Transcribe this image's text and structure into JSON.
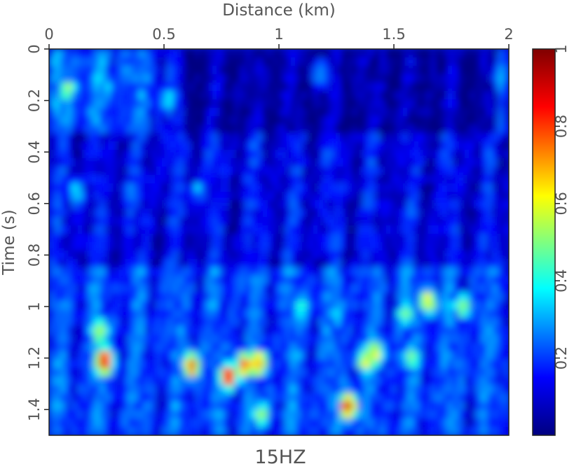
{
  "chart_data": {
    "type": "heatmap",
    "title": "",
    "caption": "15HZ",
    "xlabel": "Distance (km)",
    "ylabel": "Time (s)",
    "xlim": [
      0,
      2
    ],
    "ylim": [
      0,
      1.5
    ],
    "x_axis_position": "top",
    "y_axis_inverted": true,
    "xticks": [
      "0",
      "0.5",
      "1",
      "1.5",
      "2"
    ],
    "yticks": [
      "0",
      "0.2",
      "0.4",
      "0.6",
      "0.8",
      "1",
      "1.2",
      "1.4"
    ],
    "colorbar": {
      "range": [
        0,
        1
      ],
      "ticks": [
        "0.2",
        "0.4",
        "0.6",
        "0.8",
        "1"
      ],
      "colormap": "jet",
      "colors": [
        "#000080",
        "#0000ff",
        "#00ffff",
        "#ffff00",
        "#ff0000",
        "#800000"
      ]
    },
    "features": [
      {
        "x": 0.08,
        "t": 0.16,
        "value": 0.55
      },
      {
        "x": 0.04,
        "t": 0.22,
        "value": 0.35
      },
      {
        "x": 0.25,
        "t": 0.15,
        "value": 0.33
      },
      {
        "x": 0.52,
        "t": 0.2,
        "value": 0.38
      },
      {
        "x": 1.18,
        "t": 0.1,
        "value": 0.35
      },
      {
        "x": 1.97,
        "t": 0.1,
        "value": 0.33
      },
      {
        "x": 0.12,
        "t": 0.56,
        "value": 0.38
      },
      {
        "x": 0.35,
        "t": 0.55,
        "value": 0.28
      },
      {
        "x": 0.65,
        "t": 0.55,
        "value": 0.32
      },
      {
        "x": 0.24,
        "t": 1.21,
        "value": 0.95
      },
      {
        "x": 0.22,
        "t": 1.1,
        "value": 0.62
      },
      {
        "x": 0.62,
        "t": 1.23,
        "value": 0.82
      },
      {
        "x": 0.78,
        "t": 1.27,
        "value": 0.85
      },
      {
        "x": 0.85,
        "t": 1.23,
        "value": 0.78
      },
      {
        "x": 0.91,
        "t": 1.22,
        "value": 0.75
      },
      {
        "x": 0.92,
        "t": 1.42,
        "value": 0.55
      },
      {
        "x": 1.3,
        "t": 1.39,
        "value": 0.88
      },
      {
        "x": 1.38,
        "t": 1.21,
        "value": 0.65
      },
      {
        "x": 1.42,
        "t": 1.18,
        "value": 0.62
      },
      {
        "x": 1.65,
        "t": 0.98,
        "value": 0.65
      },
      {
        "x": 1.8,
        "t": 1.0,
        "value": 0.52
      },
      {
        "x": 1.55,
        "t": 1.03,
        "value": 0.5
      },
      {
        "x": 1.58,
        "t": 1.2,
        "value": 0.55
      },
      {
        "x": 1.1,
        "t": 1.0,
        "value": 0.45
      },
      {
        "x": 1.25,
        "t": 1.02,
        "value": 0.42
      }
    ]
  }
}
